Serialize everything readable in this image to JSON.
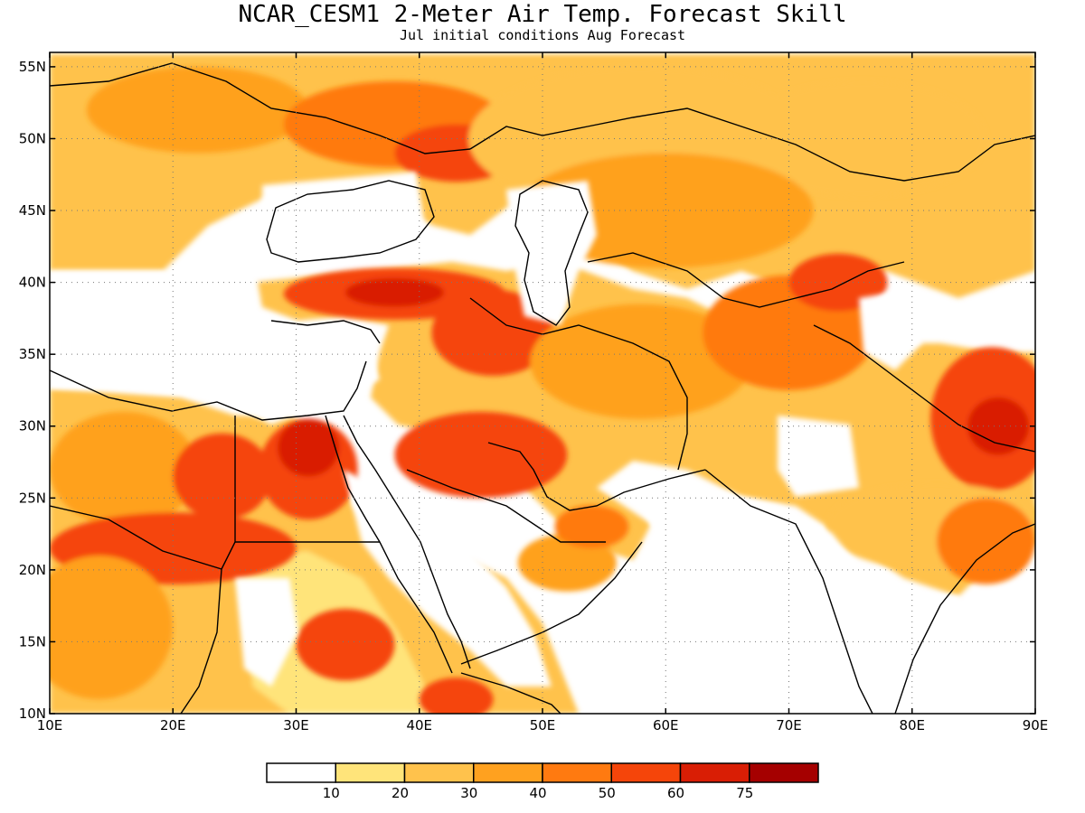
{
  "title": "NCAR_CESM1 2-Meter Air Temp. Forecast Skill",
  "subtitle": "Jul initial conditions  Aug Forecast",
  "map": {
    "lon_range": [
      10,
      90
    ],
    "lat_range": [
      10,
      56
    ],
    "lon_ticks": [
      {
        "value": 10,
        "label": "10E"
      },
      {
        "value": 20,
        "label": "20E"
      },
      {
        "value": 30,
        "label": "30E"
      },
      {
        "value": 40,
        "label": "40E"
      },
      {
        "value": 50,
        "label": "50E"
      },
      {
        "value": 60,
        "label": "60E"
      },
      {
        "value": 70,
        "label": "70E"
      },
      {
        "value": 80,
        "label": "80E"
      },
      {
        "value": 90,
        "label": "90E"
      }
    ],
    "lat_ticks": [
      {
        "value": 10,
        "label": "10N"
      },
      {
        "value": 15,
        "label": "15N"
      },
      {
        "value": 20,
        "label": "20N"
      },
      {
        "value": 25,
        "label": "25N"
      },
      {
        "value": 30,
        "label": "30N"
      },
      {
        "value": 35,
        "label": "35N"
      },
      {
        "value": 40,
        "label": "40N"
      },
      {
        "value": 45,
        "label": "45N"
      },
      {
        "value": 50,
        "label": "50N"
      },
      {
        "value": 55,
        "label": "55N"
      }
    ],
    "grid": true
  },
  "colorbar": {
    "boundaries": [
      "10",
      "20",
      "30",
      "40",
      "50",
      "60",
      "75"
    ],
    "colors": [
      "#ffffff",
      "#ffe47a",
      "#ffc24c",
      "#ffa11f",
      "#ff7a10",
      "#f5450a",
      "#d91e05",
      "#a50000"
    ]
  },
  "skill_regions": [
    {
      "lon": 22,
      "lat": 52,
      "rx": 9,
      "ry": 3,
      "level": 3
    },
    {
      "lon": 38,
      "lat": 51,
      "rx": 9,
      "ry": 3,
      "level": 4
    },
    {
      "lon": 43,
      "lat": 49,
      "rx": 5,
      "ry": 2,
      "level": 5
    },
    {
      "lon": 58,
      "lat": 50,
      "rx": 14,
      "ry": 5,
      "level": 2
    },
    {
      "lon": 76,
      "lat": 50,
      "rx": 10,
      "ry": 4,
      "level": 2
    },
    {
      "lon": 60,
      "lat": 45,
      "rx": 12,
      "ry": 4,
      "level": 3
    },
    {
      "lon": 38,
      "lat": 39.2,
      "rx": 9,
      "ry": 1.8,
      "level": 5
    },
    {
      "lon": 38,
      "lat": 39.3,
      "rx": 4,
      "ry": 1,
      "level": 6
    },
    {
      "lon": 46,
      "lat": 36.5,
      "rx": 5,
      "ry": 3,
      "level": 5
    },
    {
      "lon": 58,
      "lat": 34.5,
      "rx": 9,
      "ry": 4,
      "level": 3
    },
    {
      "lon": 70,
      "lat": 36.5,
      "rx": 7,
      "ry": 4,
      "level": 4
    },
    {
      "lon": 74,
      "lat": 40,
      "rx": 4,
      "ry": 2,
      "level": 5
    },
    {
      "lon": 86.5,
      "lat": 30.5,
      "rx": 5,
      "ry": 5,
      "level": 5
    },
    {
      "lon": 87,
      "lat": 30,
      "rx": 2.5,
      "ry": 2,
      "level": 6
    },
    {
      "lon": 82,
      "lat": 23,
      "rx": 9,
      "ry": 3,
      "level": 2
    },
    {
      "lon": 86,
      "lat": 22,
      "rx": 4,
      "ry": 3,
      "level": 4
    },
    {
      "lon": 16,
      "lat": 27,
      "rx": 6,
      "ry": 4,
      "level": 3
    },
    {
      "lon": 20,
      "lat": 21.5,
      "rx": 10,
      "ry": 2.5,
      "level": 5
    },
    {
      "lon": 24,
      "lat": 26.5,
      "rx": 4,
      "ry": 3,
      "level": 5
    },
    {
      "lon": 14,
      "lat": 16,
      "rx": 6,
      "ry": 5,
      "level": 3
    },
    {
      "lon": 31,
      "lat": 27,
      "rx": 4,
      "ry": 3.5,
      "level": 5
    },
    {
      "lon": 31,
      "lat": 28.5,
      "rx": 2.5,
      "ry": 2,
      "level": 6
    },
    {
      "lon": 45,
      "lat": 28,
      "rx": 7,
      "ry": 3,
      "level": 5
    },
    {
      "lon": 34,
      "lat": 14.8,
      "rx": 4,
      "ry": 2.5,
      "level": 5
    },
    {
      "lon": 52,
      "lat": 20.5,
      "rx": 4,
      "ry": 2,
      "level": 3
    },
    {
      "lon": 54,
      "lat": 23,
      "rx": 3,
      "ry": 1.5,
      "level": 4
    },
    {
      "lon": 43,
      "lat": 11,
      "rx": 3,
      "ry": 1.5,
      "level": 5
    }
  ]
}
